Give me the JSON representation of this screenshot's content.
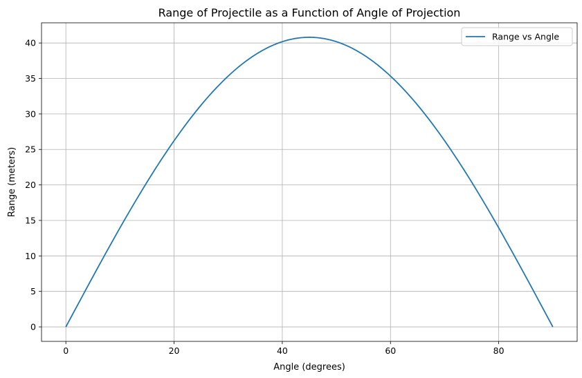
{
  "chart_data": {
    "type": "line",
    "title": "Range of Projectile as a Function of Angle of Projection",
    "xlabel": "Angle (degrees)",
    "ylabel": "Range (meters)",
    "xlim": [
      -4.5,
      94.5
    ],
    "ylim": [
      -2.04,
      42.84
    ],
    "x_ticks": [
      0,
      20,
      40,
      60,
      80
    ],
    "y_ticks": [
      0,
      5,
      10,
      15,
      20,
      25,
      30,
      35,
      40
    ],
    "grid": true,
    "legend_position": "top-right",
    "series": [
      {
        "name": "Range vs Angle",
        "color": "#1f77b4",
        "function": "40.8 * sin(2 * angle)",
        "x": [
          0,
          5,
          10,
          15,
          20,
          25,
          30,
          35,
          40,
          45,
          50,
          55,
          60,
          65,
          70,
          75,
          80,
          85,
          90
        ],
        "y": [
          0,
          7.08,
          13.95,
          20.4,
          26.23,
          31.25,
          35.33,
          38.34,
          40.18,
          40.8,
          40.18,
          38.34,
          35.33,
          31.25,
          26.23,
          20.4,
          13.95,
          7.08,
          0
        ]
      }
    ]
  }
}
